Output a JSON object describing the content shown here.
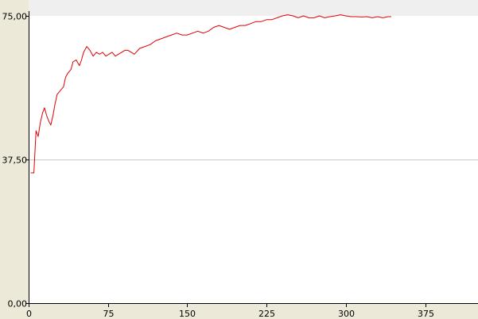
{
  "colors": {
    "plot_background": "#ffffff",
    "outer_background": "#ece9d8",
    "top_strip": "#efefef",
    "gridline": "#c8c8c8",
    "axis": "#000000",
    "series_line": "#e00000"
  },
  "chart_data": {
    "type": "line",
    "title": "",
    "xlabel": "",
    "ylabel": "",
    "xlim": [
      0,
      425
    ],
    "ylim": [
      0,
      75
    ],
    "x_ticks": [
      0,
      75,
      150,
      225,
      300,
      375
    ],
    "x_tick_labels": [
      "0",
      "75",
      "150",
      "225",
      "300",
      "375"
    ],
    "y_ticks": [
      0,
      37.5,
      75
    ],
    "y_tick_labels": [
      "0,00",
      "37,50",
      "75,00"
    ],
    "grid": {
      "horizontal_at": [
        37.5
      ],
      "vertical": false
    },
    "legend": "none",
    "series": [
      {
        "x": [
          2,
          5,
          7,
          9,
          11,
          13,
          15,
          17,
          19,
          21,
          23,
          25,
          27,
          30,
          33,
          35,
          37,
          40,
          42,
          45,
          48,
          50,
          52,
          55,
          58,
          61,
          64,
          67,
          70,
          73,
          76,
          79,
          82,
          85,
          88,
          91,
          94,
          97,
          100,
          105,
          110,
          115,
          120,
          125,
          130,
          135,
          140,
          145,
          150,
          155,
          160,
          165,
          170,
          175,
          180,
          185,
          190,
          195,
          200,
          205,
          210,
          215,
          220,
          225,
          230,
          235,
          240,
          245,
          250,
          255,
          260,
          265,
          270,
          275,
          280,
          285,
          290,
          295,
          300,
          305,
          310,
          315,
          320,
          325,
          330,
          335,
          340,
          343
        ],
        "values": [
          34.0,
          34.0,
          45.0,
          43.5,
          47.0,
          49.5,
          51.0,
          49.0,
          47.5,
          46.5,
          49.0,
          52.0,
          54.5,
          55.5,
          56.5,
          59.0,
          60.0,
          61.0,
          63.0,
          63.5,
          62.0,
          63.5,
          65.5,
          67.0,
          66.0,
          64.5,
          65.5,
          65.0,
          65.5,
          64.5,
          65.0,
          65.5,
          64.5,
          65.0,
          65.5,
          66.0,
          66.0,
          65.5,
          65.0,
          66.5,
          67.0,
          67.5,
          68.5,
          69.0,
          69.5,
          70.0,
          70.5,
          70.0,
          70.0,
          70.5,
          71.0,
          70.5,
          71.0,
          72.0,
          72.5,
          72.0,
          71.5,
          72.0,
          72.5,
          72.5,
          73.0,
          73.5,
          73.5,
          74.0,
          74.0,
          74.5,
          75.0,
          75.3,
          75.0,
          74.5,
          75.0,
          74.5,
          74.5,
          75.0,
          74.5,
          74.8,
          75.0,
          75.3,
          75.0,
          74.8,
          74.8,
          74.7,
          74.8,
          74.5,
          74.8,
          74.5,
          74.8,
          74.8
        ]
      }
    ]
  }
}
